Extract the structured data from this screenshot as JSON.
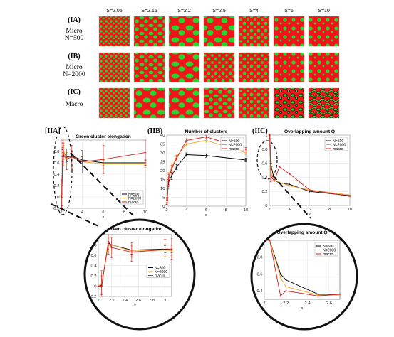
{
  "colors": {
    "green": "#27d52f",
    "red": "#f1141a",
    "black_series": "#000000",
    "orange_series": "#f2a531",
    "red_series": "#d81c1c"
  },
  "micrograph_grid": {
    "column_headers": [
      "S=2.05",
      "S=2.15",
      "S=2.2",
      "S=2.5",
      "S=4",
      "S=6",
      "S=10"
    ],
    "rows": [
      {
        "id": "(IA)",
        "label_lines": [
          "Micro",
          "N=500"
        ]
      },
      {
        "id": "(IB)",
        "label_lines": [
          "Micro",
          "N=2000"
        ]
      },
      {
        "id": "(IC)",
        "label_lines": [
          "Macro"
        ]
      }
    ]
  },
  "panel_labels": {
    "a": "[IIA]",
    "b": "(IIB)",
    "c": "(IIC)"
  },
  "chart_data": [
    {
      "id": "elongation-main",
      "type": "line",
      "title": "Green cluster elongation",
      "xlabel": "s",
      "ylabel": "",
      "xlim": [
        2,
        10
      ],
      "ylim": [
        -0.2,
        1
      ],
      "xticks": [
        2,
        4,
        6,
        8,
        10
      ],
      "yticks": [
        -0.2,
        0,
        0.2,
        0.4,
        0.6,
        0.8,
        1
      ],
      "grid": true,
      "legend_position": "bottom-right",
      "series": [
        {
          "name": "N=500",
          "x": [
            2,
            2.05,
            2.15,
            2.2,
            2.5,
            3,
            4,
            6,
            10
          ],
          "y": [
            0,
            0.02,
            0.83,
            0.8,
            0.7,
            0.72,
            0.65,
            0.6,
            0.6
          ],
          "err": [
            0,
            0.18,
            0.12,
            0.1,
            0.08,
            0.07,
            0.06,
            0.05,
            0.05
          ]
        },
        {
          "name": "N=2000",
          "x": [
            2,
            2.05,
            2.15,
            2.2,
            2.5,
            3,
            4,
            6,
            10
          ],
          "y": [
            0,
            0.05,
            0.78,
            0.8,
            0.68,
            0.7,
            0.62,
            0.58,
            0.58
          ],
          "err": [
            0,
            0.15,
            0.15,
            0.14,
            0.1,
            0.12,
            0.08,
            0.07,
            0.06
          ]
        },
        {
          "name": "macro",
          "x": [
            2,
            2.05,
            2.15,
            2.2,
            2.5,
            3,
            4,
            6,
            10
          ],
          "y": [
            0,
            0,
            0.87,
            0.75,
            0.66,
            0.71,
            0.62,
            0.66,
            0.78
          ],
          "err": [
            0,
            0.3,
            0.25,
            0.2,
            0.18,
            0.2,
            0.2,
            0.25,
            0.22
          ]
        }
      ]
    },
    {
      "id": "clusters-main",
      "type": "line",
      "title": "Number of clusters",
      "xlabel": "s",
      "ylabel": "",
      "xlim": [
        2,
        10
      ],
      "ylim": [
        0,
        40
      ],
      "xticks": [
        2,
        4,
        6,
        8,
        10
      ],
      "yticks": [
        0,
        5,
        10,
        15,
        20,
        25,
        30,
        35,
        40
      ],
      "grid": true,
      "legend_position": "top-right",
      "series": [
        {
          "name": "N=500",
          "x": [
            2,
            2.05,
            2.15,
            2.2,
            2.5,
            3,
            4,
            6,
            10
          ],
          "y": [
            1,
            3,
            12,
            14,
            17,
            22,
            29,
            28.5,
            26
          ],
          "err": [
            0,
            1,
            2,
            2,
            2,
            1.5,
            1,
            1,
            1
          ]
        },
        {
          "name": "N=2000",
          "x": [
            2,
            2.05,
            2.15,
            2.2,
            2.5,
            3,
            4,
            6,
            10
          ],
          "y": [
            1,
            4,
            14,
            17,
            22,
            28,
            35,
            37,
            30
          ],
          "err": [
            0,
            1,
            2,
            2,
            2,
            1.5,
            1,
            1,
            1
          ]
        },
        {
          "name": "macro",
          "x": [
            2,
            2.05,
            2.15,
            2.2,
            2.5,
            3,
            4,
            6,
            10
          ],
          "y": [
            1,
            4,
            13,
            16,
            21,
            27,
            37,
            39,
            32
          ],
          "err": [
            0,
            1,
            2,
            2,
            2,
            1.5,
            1,
            1,
            1
          ]
        }
      ]
    },
    {
      "id": "overlap-main",
      "type": "line",
      "title": "Overlapping amount Q",
      "xlabel": "s",
      "ylabel": "",
      "xlim": [
        2,
        10
      ],
      "ylim": [
        0,
        1
      ],
      "xticks": [
        2,
        4,
        6,
        8,
        10
      ],
      "yticks": [
        0,
        0.2,
        0.4,
        0.6,
        0.8,
        1
      ],
      "grid": true,
      "legend_position": "top-right",
      "series": [
        {
          "name": "N=500",
          "x": [
            2,
            2.05,
            2.15,
            2.2,
            2.5,
            3,
            4,
            6,
            10
          ],
          "y": [
            1,
            1,
            0.6,
            0.55,
            0.36,
            0.32,
            0.3,
            0.2,
            0.14
          ]
        },
        {
          "name": "N=2000",
          "x": [
            2,
            2.05,
            2.15,
            2.2,
            2.5,
            3,
            4,
            6,
            10
          ],
          "y": [
            1,
            1,
            0.55,
            0.45,
            0.36,
            0.33,
            0.28,
            0.22,
            0.15
          ]
        },
        {
          "name": "macro",
          "x": [
            2,
            2.05,
            2.15,
            2.2,
            2.5,
            3,
            4,
            6,
            10
          ],
          "y": [
            1,
            1,
            0.34,
            0.4,
            0.35,
            0.55,
            0.45,
            0.22,
            0.13
          ]
        }
      ]
    },
    {
      "id": "elongation-zoom",
      "type": "line",
      "title": "Green cluster elongation",
      "xlabel": "s",
      "ylabel": "",
      "xlim": [
        2,
        3.1
      ],
      "ylim": [
        -0.2,
        1
      ],
      "xticks": [
        2,
        2.2,
        2.4,
        2.6,
        2.8,
        3
      ],
      "yticks": [
        -0.2,
        0,
        0.2,
        0.4,
        0.6,
        0.8
      ],
      "grid": true,
      "legend_position": "right",
      "series": [
        {
          "name": "N=500",
          "x": [
            2,
            2.05,
            2.15,
            2.2,
            2.5,
            3,
            3.1
          ],
          "y": [
            0,
            0.02,
            0.83,
            0.8,
            0.7,
            0.72,
            0.72
          ],
          "err": [
            0,
            0.18,
            0.12,
            0.1,
            0.08,
            0.07,
            0.07
          ]
        },
        {
          "name": "N=2000",
          "x": [
            2,
            2.05,
            2.15,
            2.2,
            2.5,
            3,
            3.1
          ],
          "y": [
            0,
            0.05,
            0.78,
            0.8,
            0.68,
            0.7,
            0.69
          ],
          "err": [
            0,
            0.15,
            0.15,
            0.14,
            0.1,
            0.12,
            0.1
          ]
        },
        {
          "name": "macro",
          "x": [
            2,
            2.05,
            2.15,
            2.2,
            2.5,
            3,
            3.1
          ],
          "y": [
            0,
            0,
            0.87,
            0.75,
            0.66,
            0.71,
            0.72
          ],
          "err": [
            0,
            0.3,
            0.25,
            0.2,
            0.18,
            0.2,
            0.2
          ]
        }
      ]
    },
    {
      "id": "overlap-zoom",
      "type": "line",
      "title": "Overlapping amount Q",
      "xlabel": "s",
      "ylabel": "",
      "xlim": [
        2,
        2.7
      ],
      "ylim": [
        0.3,
        1
      ],
      "xticks": [
        2,
        2.2,
        2.4,
        2.6
      ],
      "yticks": [
        0.4,
        0.6,
        0.8,
        1
      ],
      "grid": true,
      "legend_position": "top-right",
      "series": [
        {
          "name": "N=500",
          "x": [
            2,
            2.05,
            2.15,
            2.2,
            2.5,
            2.7
          ],
          "y": [
            1,
            1,
            0.6,
            0.53,
            0.36,
            0.36
          ]
        },
        {
          "name": "N=2000",
          "x": [
            2,
            2.05,
            2.15,
            2.2,
            2.5,
            2.7
          ],
          "y": [
            1,
            1,
            0.56,
            0.45,
            0.35,
            0.35
          ]
        },
        {
          "name": "macro",
          "x": [
            2,
            2.05,
            2.15,
            2.2,
            2.5,
            2.7
          ],
          "y": [
            1,
            1,
            0.34,
            0.4,
            0.34,
            0.36
          ]
        }
      ]
    }
  ]
}
